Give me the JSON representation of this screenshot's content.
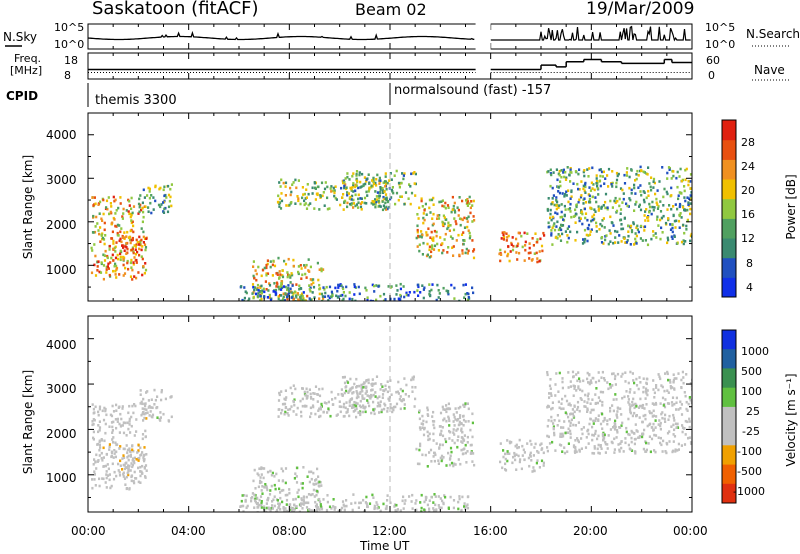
{
  "header": {
    "station": "Saskatoon (fitACF)",
    "beam": "Beam 02",
    "date": "19/Mar/2009"
  },
  "sky_panel": {
    "left_label": "N.Sky",
    "right_label": "N.Search",
    "left_ticks": [
      "10^5",
      "10^0"
    ],
    "right_ticks": [
      "10^5",
      "10^0"
    ]
  },
  "freq_panel": {
    "left_label_line1": "Freq.",
    "left_label_line2": "[MHz]",
    "right_label": "Nave",
    "left_ticks": [
      "18",
      "8"
    ],
    "right_ticks": [
      "60",
      "0"
    ],
    "freq_value_mhz": 10.5,
    "nave_segments": [
      [
        0,
        15.4,
        22
      ],
      [
        16.0,
        18.0,
        22
      ],
      [
        18.0,
        18.6,
        32
      ],
      [
        18.6,
        19.0,
        28
      ],
      [
        19.0,
        19.7,
        40
      ],
      [
        19.7,
        20.4,
        45
      ],
      [
        20.4,
        21.2,
        40
      ],
      [
        21.2,
        22.9,
        36
      ],
      [
        22.9,
        23.2,
        45
      ],
      [
        23.2,
        24,
        38
      ]
    ]
  },
  "cpid": {
    "label": "CPID",
    "programs": [
      {
        "name": "themis 3300",
        "start": 0,
        "end": 12
      },
      {
        "name": "normalsound (fast) -157",
        "start": 12,
        "end": 24
      }
    ]
  },
  "power_panel": {
    "ylabel": "Slant Range [km]",
    "yticks": [
      "1000",
      "2000",
      "3000",
      "4000"
    ],
    "colorbar_label": "Power [dB]",
    "colorbar_ticks": [
      "4",
      "8",
      "12",
      "16",
      "20",
      "24",
      "28"
    ],
    "colors": [
      "#1030e8",
      "#2050c0",
      "#3a8a70",
      "#50a060",
      "#90c840",
      "#f0c000",
      "#f09020",
      "#e85010",
      "#e02010"
    ]
  },
  "velocity_panel": {
    "ylabel": "Slant Range [km]",
    "yticks": [
      "1000",
      "2000",
      "3000",
      "4000"
    ],
    "colorbar_label": "Velocity [m s⁻¹]",
    "colorbar_ticks": [
      "1000",
      "500",
      "100",
      "25",
      "-25",
      "-100",
      "-500",
      "-1000"
    ],
    "colors": [
      "#1030e0",
      "#2060a0",
      "#3a9050",
      "#60c040",
      "#c0c0c0",
      "#c0c0c0",
      "#f0a000",
      "#f06000",
      "#e03010"
    ]
  },
  "x_axis": {
    "label": "Time UT",
    "ticks": [
      "00:00",
      "04:00",
      "08:00",
      "12:00",
      "16:00",
      "20:00",
      "00:00"
    ]
  },
  "chart_data": {
    "type": "heatmap",
    "title": "Saskatoon (fitACF) Beam 02 19/Mar/2009",
    "xlabel": "Time UT",
    "ylabel": "Slant Range [km]",
    "xlim": [
      0,
      24
    ],
    "ylim": [
      180,
      4500
    ],
    "data_gap_hours": [
      15.4,
      16.0
    ],
    "power_range_db": [
      0,
      30
    ],
    "velocity_range_ms": [
      -1000,
      1000
    ],
    "echo_regions": [
      {
        "t0": 0.1,
        "t1": 2.3,
        "r0": 700,
        "r1": 2600,
        "power": 20,
        "velocity": -200
      },
      {
        "t0": 1.2,
        "t1": 2.3,
        "r0": 1000,
        "r1": 1700,
        "power": 26,
        "velocity": -300
      },
      {
        "t0": 2.0,
        "t1": 3.3,
        "r0": 2200,
        "r1": 2900,
        "power": 12,
        "velocity": 0
      },
      {
        "t0": 6.5,
        "t1": 9.3,
        "r0": 200,
        "r1": 1200,
        "power": 18,
        "velocity": 100
      },
      {
        "t0": 7.5,
        "t1": 12.0,
        "r0": 2300,
        "r1": 3000,
        "power": 14,
        "velocity": 0
      },
      {
        "t0": 10.0,
        "t1": 13.0,
        "r0": 2400,
        "r1": 3200,
        "power": 12,
        "velocity": 0
      },
      {
        "t0": 13.0,
        "t1": 15.3,
        "r0": 1200,
        "r1": 2600,
        "power": 18,
        "velocity": 0
      },
      {
        "t0": 16.3,
        "t1": 18.1,
        "r0": 1100,
        "r1": 1800,
        "power": 22,
        "velocity": 0
      },
      {
        "t0": 18.2,
        "t1": 24.0,
        "r0": 1500,
        "r1": 3300,
        "power": 12,
        "velocity": 0
      },
      {
        "t0": 6.0,
        "t1": 15.3,
        "r0": 200,
        "r1": 600,
        "power": 8,
        "velocity": 50
      }
    ]
  }
}
